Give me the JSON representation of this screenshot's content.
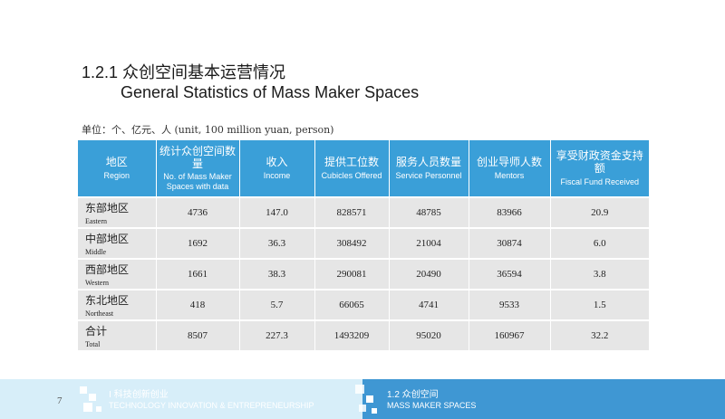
{
  "title": {
    "cn": "1.2.1 众创空间基本运营情况",
    "en": "General Statistics of Mass Maker Spaces"
  },
  "unit_note": "单位：个、亿元、人  (unit, 100 million yuan, person)",
  "table": {
    "headers": [
      {
        "cn": "地区",
        "en": "Region"
      },
      {
        "cn": "统计众创空间数量",
        "en": "No. of Mass Maker Spaces with data"
      },
      {
        "cn": "收入",
        "en": "Income"
      },
      {
        "cn": "提供工位数",
        "en": "Cubicles Offered"
      },
      {
        "cn": "服务人员数量",
        "en": "Service Personnel"
      },
      {
        "cn": "创业导师人数",
        "en": "Mentors"
      },
      {
        "cn": "享受财政资金支持额",
        "en": "Fiscal Fund Received"
      }
    ],
    "rows": [
      {
        "region_cn": "东部地区",
        "region_en": "Eastern",
        "values": [
          "4736",
          "147.0",
          "828571",
          "48785",
          "83966",
          "20.9"
        ]
      },
      {
        "region_cn": "中部地区",
        "region_en": "Middle",
        "values": [
          "1692",
          "36.3",
          "308492",
          "21004",
          "30874",
          "6.0"
        ]
      },
      {
        "region_cn": "西部地区",
        "region_en": "Western",
        "values": [
          "1661",
          "38.3",
          "290081",
          "20490",
          "36594",
          "3.8"
        ]
      },
      {
        "region_cn": "东北地区",
        "region_en": "Northeast",
        "values": [
          "418",
          "5.7",
          "66065",
          "4741",
          "9533",
          "1.5"
        ]
      },
      {
        "region_cn": "合计",
        "region_en": "Total",
        "values": [
          "8507",
          "227.3",
          "1493209",
          "95020",
          "160967",
          "32.2"
        ]
      }
    ]
  },
  "footer": {
    "page_number": "7",
    "left_cn": "Ⅰ 科技创新创业",
    "left_en": "TECHNOLOGY INNOVATION & ENTREPRENEURSHIP",
    "right_cn": "1.2 众创空间",
    "right_en": "MASS MAKER SPACES",
    "colors": {
      "left_band": "#d7eef9",
      "right_band": "#3f97d3",
      "header": "#3a9fd8"
    }
  }
}
